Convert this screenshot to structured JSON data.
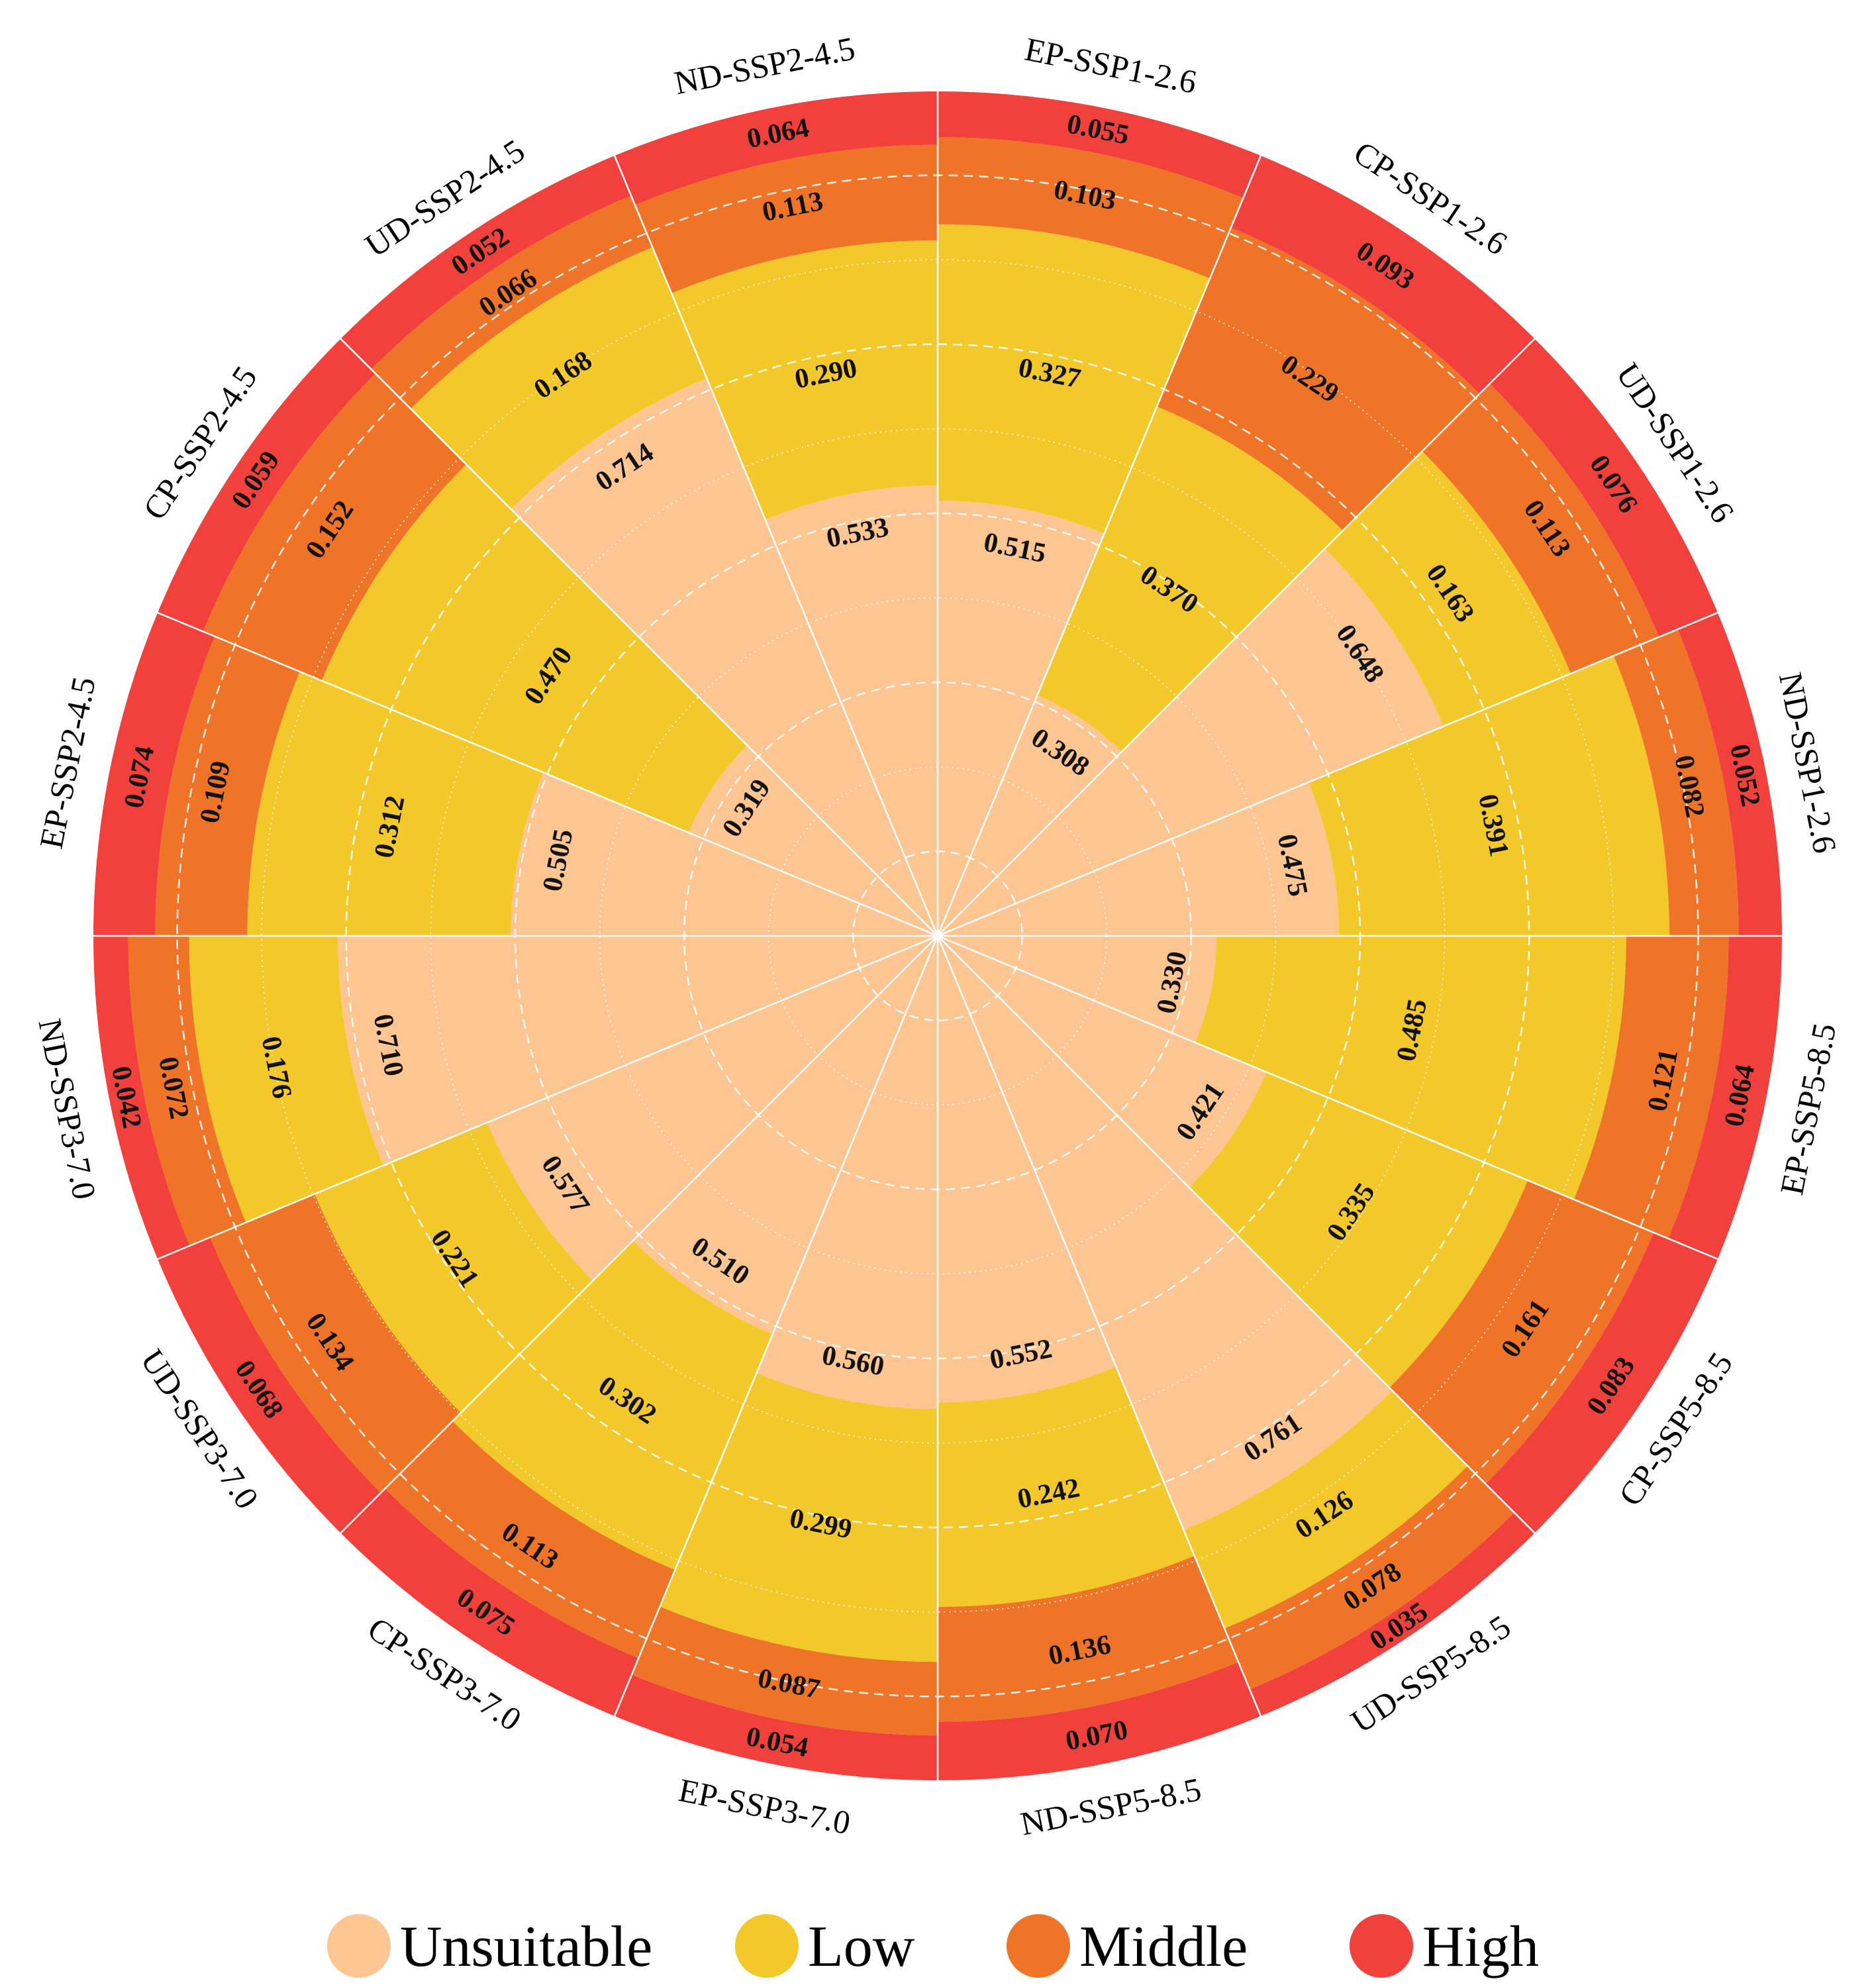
{
  "chart_data": {
    "type": "stacked-polar-bar",
    "levels": [
      "Unsuitable",
      "Low",
      "Middle",
      "High"
    ],
    "colors": {
      "Unsuitable": "#FCC591",
      "Low": "#F2C82A",
      "Middle": "#F07427",
      "High": "#F2413D",
      "grid": "#FFFFFF"
    },
    "categories": [
      "EP-SSP1-2.6",
      "CP-SSP1-2.6",
      "UD-SSP1-2.6",
      "ND-SSP1-2.6",
      "EP-SSP5-8.5",
      "CP-SSP5-8.5",
      "UD-SSP5-8.5",
      "ND-SSP5-8.5",
      "EP-SSP3-7.0",
      "CP-SSP3-7.0",
      "UD-SSP3-7.0",
      "ND-SSP3-7.0",
      "EP-SSP2-4.5",
      "CP-SSP2-4.5",
      "UD-SSP2-4.5",
      "ND-SSP2-4.5"
    ],
    "series": [
      {
        "name": "Unsuitable",
        "values": [
          0.515,
          0.308,
          0.648,
          0.475,
          0.33,
          0.421,
          0.761,
          0.552,
          0.56,
          0.51,
          0.577,
          0.71,
          0.505,
          0.319,
          0.714,
          0.533
        ]
      },
      {
        "name": "Low",
        "values": [
          0.327,
          0.37,
          0.163,
          0.391,
          0.485,
          0.335,
          0.126,
          0.242,
          0.299,
          0.302,
          0.221,
          0.176,
          0.312,
          0.47,
          0.168,
          0.29
        ]
      },
      {
        "name": "Middle",
        "values": [
          0.103,
          0.229,
          0.113,
          0.082,
          0.121,
          0.161,
          0.078,
          0.136,
          0.087,
          0.113,
          0.134,
          0.072,
          0.109,
          0.152,
          0.066,
          0.113
        ]
      },
      {
        "name": "High",
        "values": [
          0.055,
          0.093,
          0.076,
          0.052,
          0.064,
          0.083,
          0.035,
          0.07,
          0.054,
          0.075,
          0.068,
          0.042,
          0.074,
          0.059,
          0.052,
          0.064
        ]
      }
    ],
    "radial_range": [
      0,
      1
    ],
    "gridlines": [
      0.1,
      0.2,
      0.3,
      0.4,
      0.5,
      0.6,
      0.7,
      0.8,
      0.9
    ],
    "legend_position": "bottom"
  }
}
